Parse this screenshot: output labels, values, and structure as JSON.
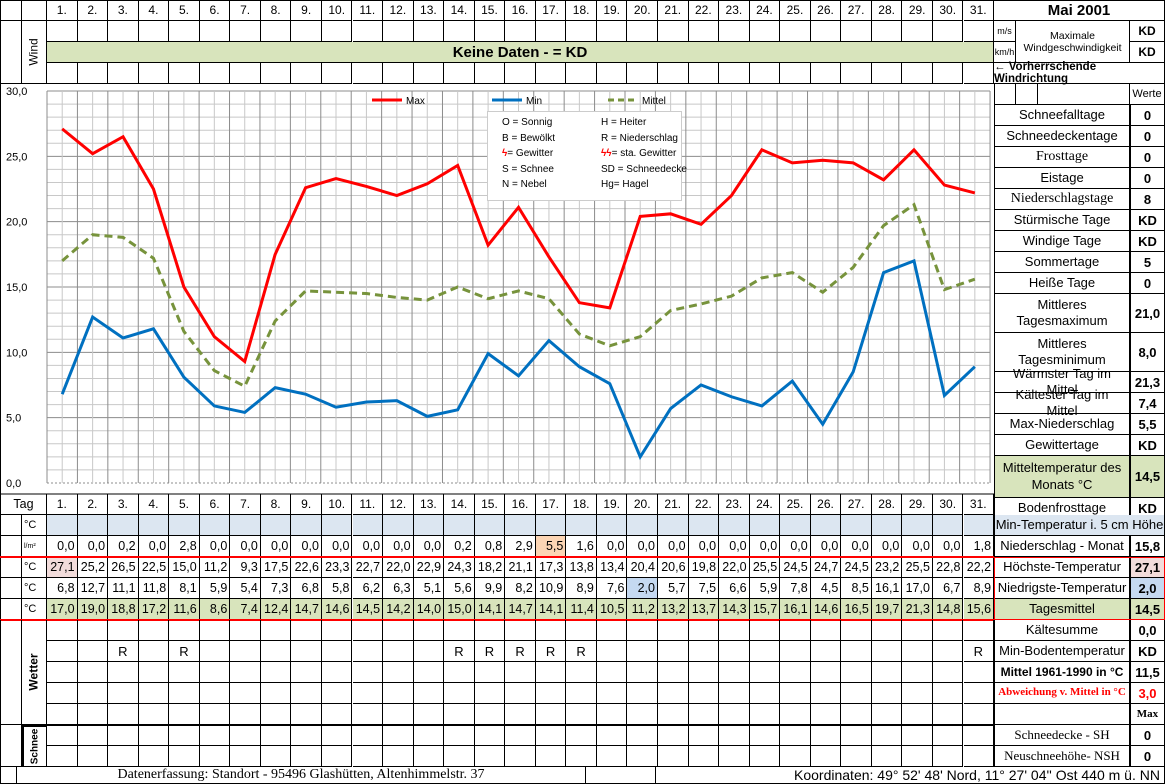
{
  "title": "Mai 2001",
  "days": [
    "1.",
    "2.",
    "3.",
    "4.",
    "5.",
    "6.",
    "7.",
    "8.",
    "9.",
    "10.",
    "11.",
    "12.",
    "13.",
    "14.",
    "15.",
    "16.",
    "17.",
    "18.",
    "19.",
    "20.",
    "21.",
    "22.",
    "23.",
    "24.",
    "25.",
    "26.",
    "27.",
    "28.",
    "29.",
    "30.",
    "31."
  ],
  "wind": {
    "section_label": "Wind",
    "banner": "Keine Daten -  = KD",
    "unit_ms": "m/s",
    "unit_kmh": "km/h",
    "max_label_1": "Maximale",
    "max_label_2": "Windgeschwindigkeit",
    "max_ms": "KD",
    "max_kmh": "KD",
    "direction_label": "← Vorherrschende Windrichtung"
  },
  "chart_data": {
    "type": "line",
    "title": "",
    "xlabel": "Tag",
    "ylabel": "°C",
    "ylim": [
      0,
      30
    ],
    "yticks": [
      "0,0",
      "5,0",
      "10,0",
      "15,0",
      "20,0",
      "25,0",
      "30,0"
    ],
    "grid": true,
    "legend_position": "top",
    "categories": [
      "1.",
      "2.",
      "3.",
      "4.",
      "5.",
      "6.",
      "7.",
      "8.",
      "9.",
      "10.",
      "11.",
      "12.",
      "13.",
      "14.",
      "15.",
      "16.",
      "17.",
      "18.",
      "19.",
      "20.",
      "21.",
      "22.",
      "23.",
      "24.",
      "25.",
      "26.",
      "27.",
      "28.",
      "29.",
      "30.",
      "31."
    ],
    "series": [
      {
        "name": "Max",
        "color": "#ff0000",
        "style": "solid",
        "values": [
          27.1,
          25.2,
          26.5,
          22.5,
          15.0,
          11.2,
          9.3,
          17.5,
          22.6,
          23.3,
          22.7,
          22.0,
          22.9,
          24.3,
          18.2,
          21.1,
          17.3,
          13.8,
          13.4,
          20.4,
          20.6,
          19.8,
          22.0,
          25.5,
          24.5,
          24.7,
          24.5,
          23.2,
          25.5,
          22.8,
          22.2
        ]
      },
      {
        "name": "Min",
        "color": "#0070c0",
        "style": "solid",
        "values": [
          6.8,
          12.7,
          11.1,
          11.8,
          8.1,
          5.9,
          5.4,
          7.3,
          6.8,
          5.8,
          6.2,
          6.3,
          5.1,
          5.6,
          9.9,
          8.2,
          10.9,
          8.9,
          7.6,
          2.0,
          5.7,
          7.5,
          6.6,
          5.9,
          7.8,
          4.5,
          8.5,
          16.1,
          17.0,
          6.7,
          8.9
        ]
      },
      {
        "name": "Mittel",
        "color": "#77933c",
        "style": "dashed",
        "values": [
          17.0,
          19.0,
          18.8,
          17.2,
          11.6,
          8.6,
          7.4,
          12.4,
          14.7,
          14.6,
          14.5,
          14.2,
          14.0,
          15.0,
          14.1,
          14.7,
          14.1,
          11.4,
          10.5,
          11.2,
          13.2,
          13.7,
          14.3,
          15.7,
          16.1,
          14.6,
          16.5,
          19.7,
          21.3,
          14.8,
          15.6
        ]
      }
    ],
    "weather_key": [
      [
        "O = Sonnig",
        "H = Heiter"
      ],
      [
        "B = Bewölkt",
        "R = Niederschlag"
      ],
      [
        "= Gewitter",
        "= sta. Gewitter"
      ],
      [
        "S = Schnee",
        "SD = Schneedecke"
      ],
      [
        "N = Nebel",
        "Hg= Hagel"
      ]
    ]
  },
  "table": {
    "tag_label": "Tag",
    "rows": [
      {
        "unit": "°C",
        "name": "min-5cm",
        "values": [
          "",
          "",
          "",
          "",
          "",
          "",
          "",
          "",
          "",
          "",
          "",
          "",
          "",
          "",
          "",
          "",
          "",
          "",
          "",
          "",
          "",
          "",
          "",
          "",
          "",
          "",
          "",
          "",
          "",
          "",
          ""
        ]
      },
      {
        "unit": "l/m²",
        "name": "niederschlag",
        "values": [
          "0,0",
          "0,0",
          "0,2",
          "0,0",
          "2,8",
          "0,0",
          "0,0",
          "0,0",
          "0,0",
          "0,0",
          "0,0",
          "0,0",
          "0,0",
          "0,2",
          "0,8",
          "2,9",
          "5,5",
          "1,6",
          "0,0",
          "0,0",
          "0,0",
          "0,0",
          "0,0",
          "0,0",
          "0,0",
          "0,0",
          "0,0",
          "0,0",
          "0,0",
          "0,0",
          "1,8"
        ]
      },
      {
        "unit": "°C",
        "name": "max",
        "values": [
          "27,1",
          "25,2",
          "26,5",
          "22,5",
          "15,0",
          "11,2",
          "9,3",
          "17,5",
          "22,6",
          "23,3",
          "22,7",
          "22,0",
          "22,9",
          "24,3",
          "18,2",
          "21,1",
          "17,3",
          "13,8",
          "13,4",
          "20,4",
          "20,6",
          "19,8",
          "22,0",
          "25,5",
          "24,5",
          "24,7",
          "24,5",
          "23,2",
          "25,5",
          "22,8",
          "22,2"
        ]
      },
      {
        "unit": "°C",
        "name": "min",
        "values": [
          "6,8",
          "12,7",
          "11,1",
          "11,8",
          "8,1",
          "5,9",
          "5,4",
          "7,3",
          "6,8",
          "5,8",
          "6,2",
          "6,3",
          "5,1",
          "5,6",
          "9,9",
          "8,2",
          "10,9",
          "8,9",
          "7,6",
          "2,0",
          "5,7",
          "7,5",
          "6,6",
          "5,9",
          "7,8",
          "4,5",
          "8,5",
          "16,1",
          "17,0",
          "6,7",
          "8,9"
        ]
      },
      {
        "unit": "°C",
        "name": "mittel",
        "values": [
          "17,0",
          "19,0",
          "18,8",
          "17,2",
          "11,6",
          "8,6",
          "7,4",
          "12,4",
          "14,7",
          "14,6",
          "14,5",
          "14,2",
          "14,0",
          "15,0",
          "14,1",
          "14,7",
          "14,1",
          "11,4",
          "10,5",
          "11,2",
          "13,2",
          "13,7",
          "14,3",
          "15,7",
          "16,1",
          "14,6",
          "16,5",
          "19,7",
          "21,3",
          "14,8",
          "15,6"
        ]
      }
    ],
    "wetter_label": "Wetter",
    "wetter_rows": [
      [
        "",
        "",
        "",
        "",
        "",
        "",
        "",
        "",
        "",
        "",
        "",
        "",
        "",
        "",
        "",
        "",
        "",
        "",
        "",
        "",
        "",
        "",
        "",
        "",
        "",
        "",
        "",
        "",
        "",
        "",
        ""
      ],
      [
        "",
        "",
        "R",
        "",
        "R",
        "",
        "",
        "",
        "",
        "",
        "",
        "",
        "",
        "R",
        "R",
        "R",
        "R",
        "R",
        "",
        "",
        "",
        "",
        "",
        "",
        "",
        "",
        "",
        "",
        "",
        "",
        "R"
      ],
      [
        "",
        "",
        "",
        "",
        "",
        "",
        "",
        "",
        "",
        "",
        "",
        "",
        "",
        "",
        "",
        "",
        "",
        "",
        "",
        "",
        "",
        "",
        "",
        "",
        "",
        "",
        "",
        "",
        "",
        "",
        ""
      ],
      [
        "",
        "",
        "",
        "",
        "",
        "",
        "",
        "",
        "",
        "",
        "",
        "",
        "",
        "",
        "",
        "",
        "",
        "",
        "",
        "",
        "",
        "",
        "",
        "",
        "",
        "",
        "",
        "",
        "",
        "",
        ""
      ],
      [
        "",
        "",
        "",
        "",
        "",
        "",
        "",
        "",
        "",
        "",
        "",
        "",
        "",
        "",
        "",
        "",
        "",
        "",
        "",
        "",
        "",
        "",
        "",
        "",
        "",
        "",
        "",
        "",
        "",
        "",
        ""
      ]
    ],
    "schnee_label": "Schnee"
  },
  "stats": {
    "werte_label": "Werte",
    "items": [
      {
        "label": "Schneefalltage",
        "value": "0"
      },
      {
        "label": "Schneedeckentage",
        "value": "0"
      },
      {
        "label": "Frosttage",
        "value": "0"
      },
      {
        "label": "Eistage",
        "value": "0"
      },
      {
        "label": "Niederschlagstage",
        "value": "8"
      },
      {
        "label": "Stürmische Tage",
        "value": "KD"
      },
      {
        "label": "Windige Tage",
        "value": "KD"
      },
      {
        "label": "Sommertage",
        "value": "5"
      },
      {
        "label": "Heiße Tage",
        "value": "0"
      },
      {
        "label": "Mittleres Tagesmaximum",
        "value": "21,0"
      },
      {
        "label": "Mittleres Tagesminimum",
        "value": "8,0"
      },
      {
        "label": "Wärmster Tag im Mittel",
        "value": "21,3"
      },
      {
        "label": "Kältester Tag im Mittel",
        "value": "7,4"
      },
      {
        "label": "Max-Niederschlag",
        "value": "5,5"
      },
      {
        "label": "Gewittertage",
        "value": "KD"
      },
      {
        "label": "Mitteltemperatur des Monats °C",
        "value": "14,5"
      },
      {
        "label": "Bodenfrosttage",
        "value": "KD"
      }
    ],
    "min_temp_5cm_label": "Min-Temperatur i. 5 cm Höhe",
    "summary": [
      {
        "label": "Niederschlag - Monat",
        "value": "15,8"
      },
      {
        "label": "Höchste-Temperatur",
        "value": "27,1"
      },
      {
        "label": "Niedrigste-Temperatur",
        "value": "2,0"
      },
      {
        "label": "Tagesmittel",
        "value": "14,5"
      },
      {
        "label": "Kältesumme",
        "value": "0,0"
      },
      {
        "label": "Min-Bodentemperatur",
        "value": "KD"
      },
      {
        "label": "Mittel 1961-1990 in °C",
        "value": "11,5"
      },
      {
        "label": "Abweichung v. Mittel in °C",
        "value": "3,0"
      }
    ],
    "max_label": "Max",
    "snow": [
      {
        "label": "Schneedecke -   SH",
        "value": "0"
      },
      {
        "label": "Neuschneehöhe- NSH",
        "value": "0"
      }
    ]
  },
  "footer": {
    "location": "Datenerfassung:  Standort -  95496  Glashütten, Altenhimmelstr. 37",
    "coordinates": "Koordinaten:  49° 52' 48' Nord,   11° 27' 04'' Ost   440 m ü. NN"
  },
  "colors": {
    "wind_banner": "#d8e4bc",
    "min5cm_row": "#dce6f1",
    "mittel_row": "#d8e4bc",
    "max_highlight": "#f2dcdb",
    "min_highlight": "#c5d9f1",
    "precip_highlight": "#fcd5b4",
    "max_line": "#ff0000",
    "min_line": "#0070c0",
    "mittel_line": "#77933c",
    "deviation_text": "#ff0000"
  }
}
